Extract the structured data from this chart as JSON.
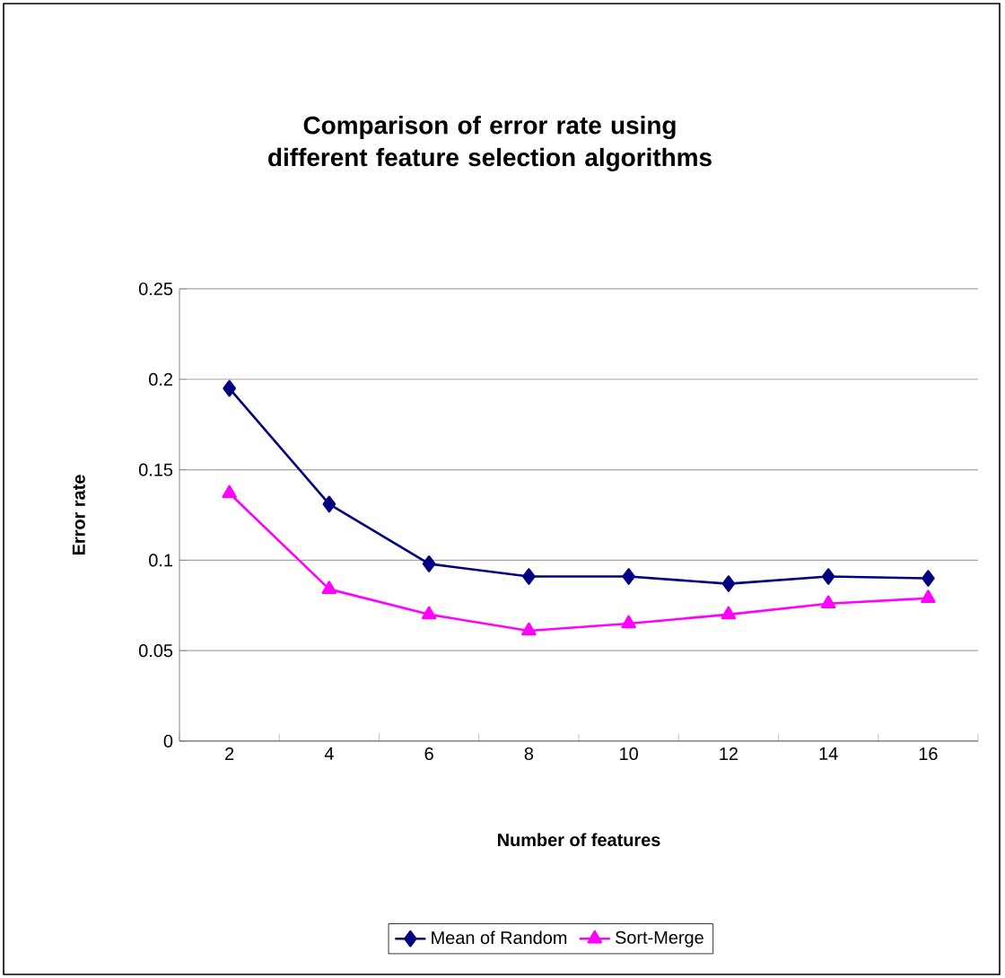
{
  "chart_data": {
    "type": "line",
    "title": "Comparison of error rate using\ndifferent feature selection algorithms",
    "xlabel": "Number of features",
    "ylabel": "Error rate",
    "categories": [
      "2",
      "4",
      "6",
      "8",
      "10",
      "12",
      "14",
      "16"
    ],
    "series": [
      {
        "name": "Mean of Random",
        "color": "#000080",
        "marker": "diamond",
        "values": [
          0.195,
          0.131,
          0.098,
          0.091,
          0.091,
          0.087,
          0.091,
          0.09
        ]
      },
      {
        "name": "Sort-Merge",
        "color": "#ff00ff",
        "marker": "triangle",
        "values": [
          0.137,
          0.084,
          0.07,
          0.061,
          0.065,
          0.07,
          0.076,
          0.079
        ]
      }
    ],
    "ylim": [
      0,
      0.25
    ],
    "yticks": [
      0,
      0.05,
      0.1,
      0.15,
      0.2,
      0.25
    ],
    "grid": "y",
    "legend": "bottom",
    "line_style": "solid"
  }
}
